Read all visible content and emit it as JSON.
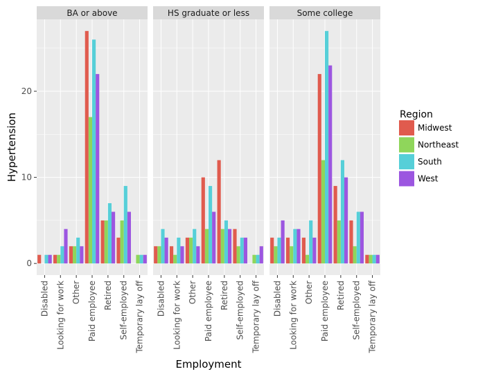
{
  "chart_data": {
    "type": "bar",
    "facets": [
      "BA or above",
      "HS graduate or less",
      "Some college"
    ],
    "categories": [
      "Disabled",
      "Looking for work",
      "Other",
      "Paid employee",
      "Retired",
      "Self-employed",
      "Temporary lay off"
    ],
    "series": [
      {
        "name": "Midwest",
        "color": "#e05b4e",
        "values": [
          [
            1,
            1,
            2,
            27,
            5,
            3,
            0
          ],
          [
            2,
            2,
            3,
            10,
            12,
            4,
            0
          ],
          [
            3,
            3,
            3,
            22,
            9,
            5,
            1
          ]
        ]
      },
      {
        "name": "Northeast",
        "color": "#8fd65b",
        "values": [
          [
            0,
            1,
            2,
            17,
            5,
            5,
            1
          ],
          [
            2,
            1,
            3,
            4,
            4,
            2,
            1
          ],
          [
            2,
            2,
            1,
            12,
            5,
            2,
            1
          ]
        ]
      },
      {
        "name": "South",
        "color": "#56cfd8",
        "values": [
          [
            1,
            2,
            3,
            26,
            7,
            9,
            1
          ],
          [
            4,
            3,
            4,
            9,
            5,
            3,
            1
          ],
          [
            3,
            4,
            5,
            27,
            12,
            6,
            1
          ]
        ]
      },
      {
        "name": "West",
        "color": "#9c56e0",
        "values": [
          [
            1,
            4,
            2,
            22,
            6,
            6,
            1
          ],
          [
            3,
            2,
            2,
            6,
            4,
            3,
            2
          ],
          [
            5,
            4,
            3,
            23,
            10,
            6,
            1
          ]
        ]
      }
    ],
    "xlabel": "Employment",
    "ylabel": "Hypertension",
    "yticks": [
      0,
      10,
      20
    ],
    "ylim": [
      -1.35,
      28.35
    ],
    "legend_title": "Region",
    "legend_position": "right",
    "panel_background": "#ebebeb",
    "strip_background": "#d9d9d9",
    "grid": true
  }
}
